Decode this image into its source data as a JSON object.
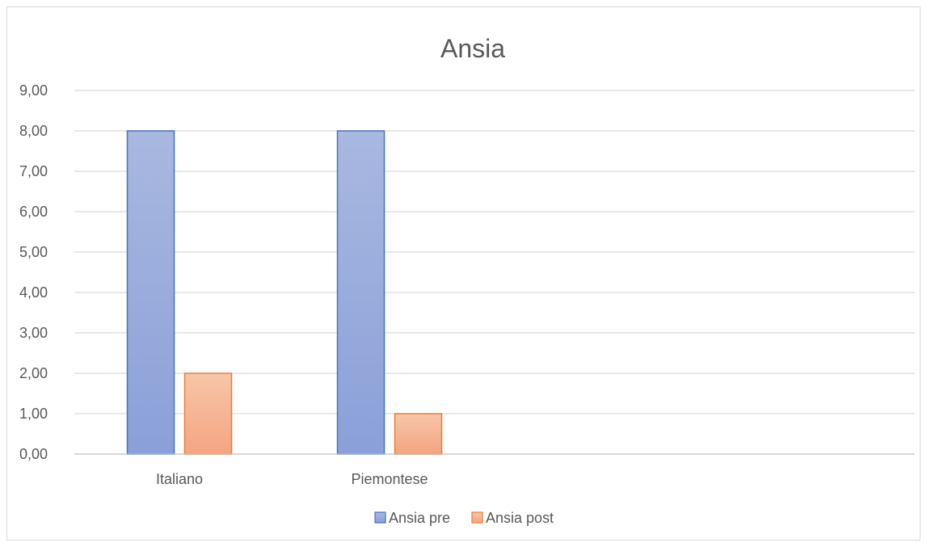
{
  "chart_data": {
    "type": "bar",
    "title": "Ansia",
    "categories": [
      "Italiano",
      "Piemontese"
    ],
    "series": [
      {
        "name": "Ansia pre",
        "values": [
          8,
          8
        ],
        "color_top": "#a9b8e0",
        "color_bottom": "#8aa0d8",
        "stroke": "#4472c4"
      },
      {
        "name": "Ansia post",
        "values": [
          2,
          1
        ],
        "color_top": "#f7c6a8",
        "color_bottom": "#f4a582",
        "stroke": "#ed7d31"
      }
    ],
    "y_ticks": [
      "0,00",
      "1,00",
      "2,00",
      "3,00",
      "4,00",
      "5,00",
      "6,00",
      "7,00",
      "8,00",
      "9,00"
    ],
    "ylim": [
      0,
      9
    ],
    "category_slots": 4,
    "grid": true,
    "legend_position": "bottom"
  }
}
